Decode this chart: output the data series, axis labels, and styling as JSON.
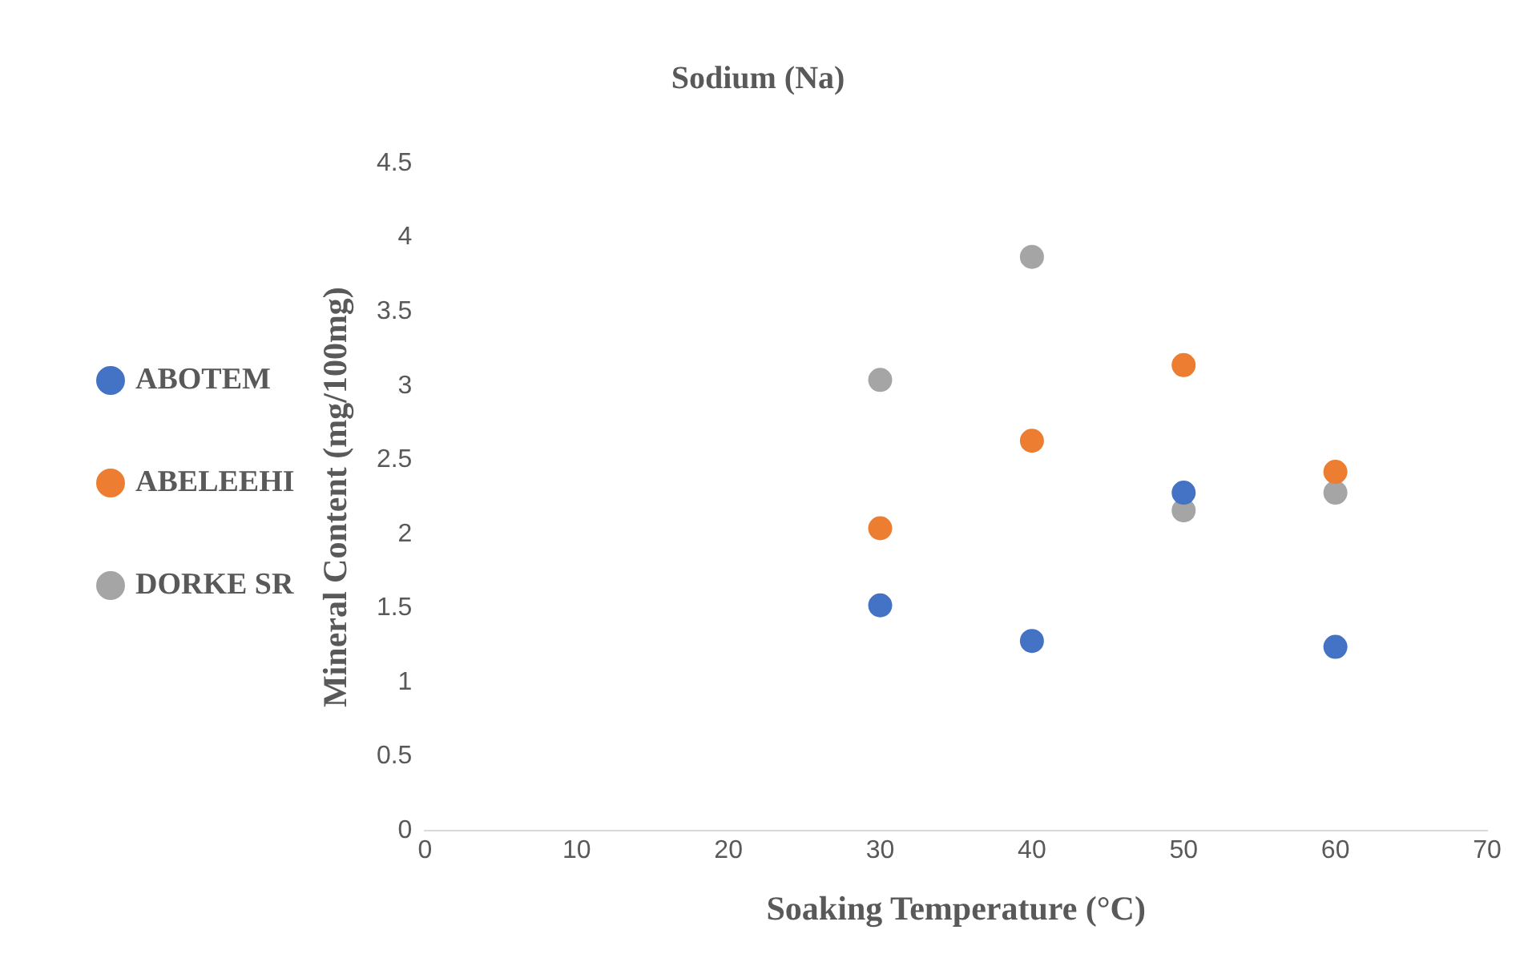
{
  "chart_data": {
    "type": "scatter",
    "title": "Sodium (Na)",
    "xlabel": "Soaking Temperature (°C)",
    "ylabel": "Mineral Content (mg/100mg)",
    "x": [
      30,
      40,
      50,
      60
    ],
    "series": [
      {
        "name": "ABOTEM",
        "color": "#4472c4",
        "values": [
          1.52,
          1.28,
          2.28,
          1.24
        ]
      },
      {
        "name": "ABELEEHI",
        "color": "#ed7d31",
        "values": [
          2.04,
          2.63,
          3.14,
          2.42
        ]
      },
      {
        "name": "DORKE SR",
        "color": "#a5a5a5",
        "values": [
          3.04,
          3.87,
          2.16,
          2.28
        ]
      }
    ],
    "xlim": [
      0,
      70
    ],
    "xticks": [
      0,
      10,
      20,
      30,
      40,
      50,
      60,
      70
    ],
    "ylim": [
      0,
      4.5
    ],
    "yticks": [
      0,
      0.5,
      1,
      1.5,
      2,
      2.5,
      3,
      3.5,
      4,
      4.5
    ],
    "legend": "left",
    "marker": "circle"
  }
}
